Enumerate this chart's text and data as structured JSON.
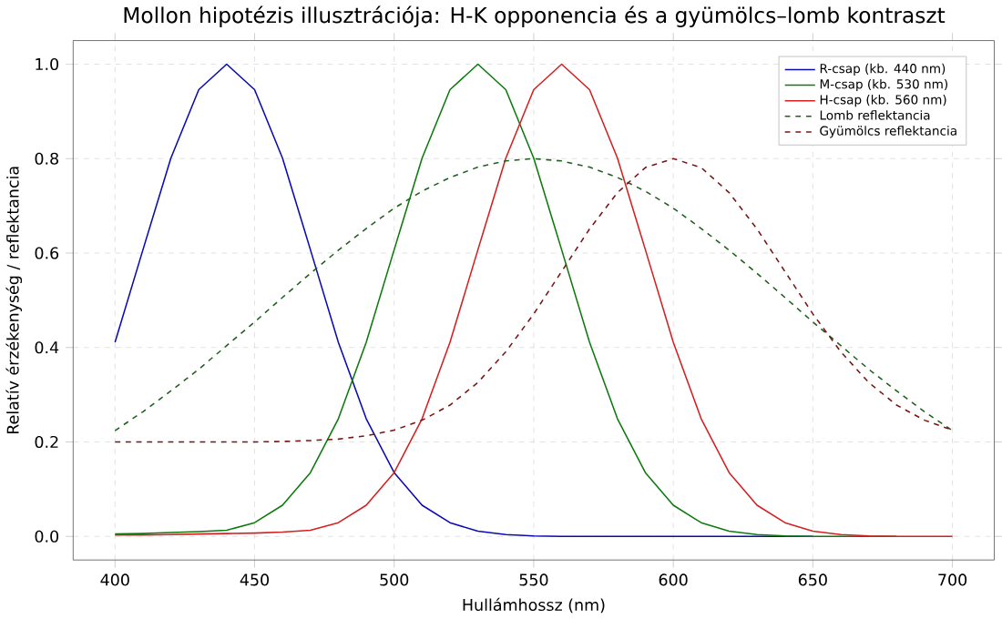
{
  "chart_data": {
    "type": "line",
    "title": "Mollon hipotézis illusztrációja: H-K  opponencia és a gyümölcs–lomb kontraszt",
    "xlabel": "Hullámhossz (nm)",
    "ylabel": "Relatív érzékenység / reflektancia",
    "x": [
      400,
      410,
      420,
      430,
      440,
      450,
      460,
      470,
      480,
      490,
      500,
      510,
      520,
      530,
      540,
      550,
      560,
      570,
      580,
      590,
      600,
      610,
      620,
      630,
      640,
      650,
      660,
      670,
      680,
      690,
      700
    ],
    "series": [
      {
        "name": "R-csap (kb. 440 nm)",
        "color": "#0a0ab4",
        "line_style": "solid",
        "values": [
          0.411,
          0.607,
          0.801,
          0.946,
          1,
          0.946,
          0.801,
          0.607,
          0.411,
          0.249,
          0.135,
          0.066,
          0.029,
          0.011,
          0.004,
          0.001,
          0,
          0,
          0,
          0,
          0,
          0,
          0,
          0,
          0,
          0,
          null,
          null,
          null,
          null,
          null
        ]
      },
      {
        "name": "M-csap (kb. 530 nm)",
        "color": "#0c7a0c",
        "line_style": "solid",
        "values": [
          0.005,
          0.006,
          0.008,
          0.01,
          0.013,
          0.029,
          0.066,
          0.135,
          0.249,
          0.411,
          0.607,
          0.801,
          0.946,
          1,
          0.946,
          0.801,
          0.607,
          0.411,
          0.249,
          0.135,
          0.066,
          0.029,
          0.011,
          0.004,
          0.001,
          0,
          0,
          0,
          0,
          null,
          null
        ]
      },
      {
        "name": "H-csap (kb. 560 nm)",
        "color": "#d42020",
        "line_style": "solid",
        "values": [
          0.003,
          0.003,
          0.004,
          0.005,
          0.006,
          0.007,
          0.009,
          0.013,
          0.029,
          0.066,
          0.135,
          0.249,
          0.411,
          0.607,
          0.801,
          0.946,
          1,
          0.946,
          0.801,
          0.607,
          0.411,
          0.249,
          0.135,
          0.066,
          0.029,
          0.011,
          0.004,
          0.001,
          0,
          0,
          0
        ]
      },
      {
        "name": "Lomb reflektancia",
        "color": "#1f5f1f",
        "line_style": "dashed",
        "values": [
          0.224,
          0.264,
          0.308,
          0.354,
          0.404,
          0.454,
          0.506,
          0.557,
          0.606,
          0.652,
          0.695,
          0.731,
          0.76,
          0.782,
          0.795,
          0.8,
          0.795,
          0.782,
          0.76,
          0.731,
          0.695,
          0.652,
          0.606,
          0.557,
          0.506,
          0.454,
          0.404,
          0.354,
          0.308,
          0.264,
          0.224
        ]
      },
      {
        "name": "Gyümölcs reflektancia",
        "color": "#7a1414",
        "line_style": "dashed",
        "values": [
          0.2,
          0.2,
          0.2,
          0.2,
          0.2,
          0.2,
          0.201,
          0.203,
          0.206,
          0.213,
          0.225,
          0.246,
          0.278,
          0.326,
          0.391,
          0.471,
          0.561,
          0.651,
          0.728,
          0.781,
          0.8,
          0.781,
          0.728,
          0.651,
          0.561,
          0.471,
          0.391,
          0.326,
          0.278,
          0.246,
          0.225
        ]
      }
    ],
    "xlim": [
      385,
      715
    ],
    "ylim": [
      -0.05,
      1.05
    ],
    "xticks": [
      400,
      450,
      500,
      550,
      600,
      650,
      700
    ],
    "yticks": [
      {
        "value": 0,
        "label": "0.0"
      },
      {
        "value": 0.2,
        "label": "0.2"
      },
      {
        "value": 0.4,
        "label": "0.4"
      },
      {
        "value": 0.6,
        "label": "0.6"
      },
      {
        "value": 0.8,
        "label": "0.8"
      },
      {
        "value": 1,
        "label": "1.0"
      }
    ],
    "grid": true,
    "legend": "top right"
  }
}
